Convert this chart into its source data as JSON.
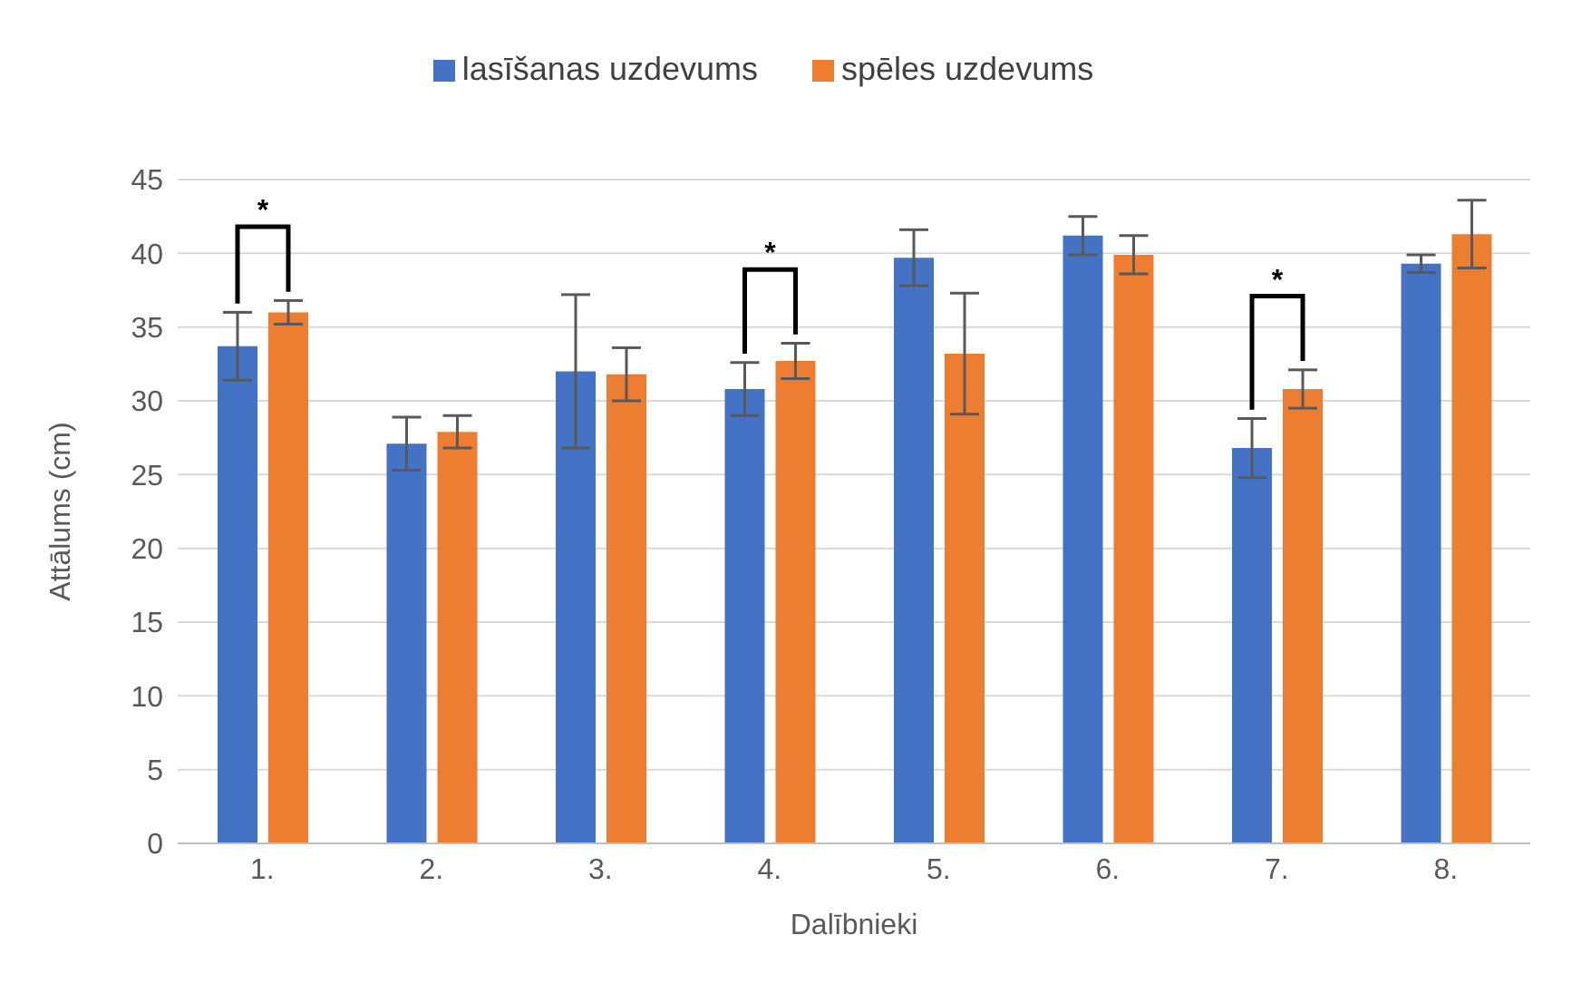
{
  "chart_data": {
    "type": "bar",
    "xlabel": "Dalībnieki",
    "ylabel": "Attālums (cm)",
    "categories": [
      "1.",
      "2.",
      "3.",
      "4.",
      "5.",
      "6.",
      "7.",
      "8."
    ],
    "series": [
      {
        "name": "lasīšanas uzdevums",
        "color": "#4472c4",
        "values": [
          33.7,
          27.1,
          32,
          30.8,
          39.7,
          41.2,
          26.8,
          39.3
        ],
        "errors": [
          2.3,
          1.8,
          5.2,
          1.8,
          1.9,
          1.3,
          2,
          0.6
        ]
      },
      {
        "name": "spēles uzdevums",
        "color": "#ed7d31",
        "values": [
          36,
          27.9,
          31.8,
          32.7,
          33.2,
          39.9,
          30.8,
          41.3
        ],
        "errors": [
          0.8,
          1.1,
          1.8,
          1.2,
          4.1,
          1.3,
          1.3,
          2.3
        ]
      }
    ],
    "ylim": [
      0,
      45
    ],
    "yticks": [
      0,
      5,
      10,
      15,
      20,
      25,
      30,
      35,
      40,
      45
    ],
    "grid": "y",
    "legend": "top",
    "annotations": [
      "*",
      "*",
      "*"
    ]
  }
}
